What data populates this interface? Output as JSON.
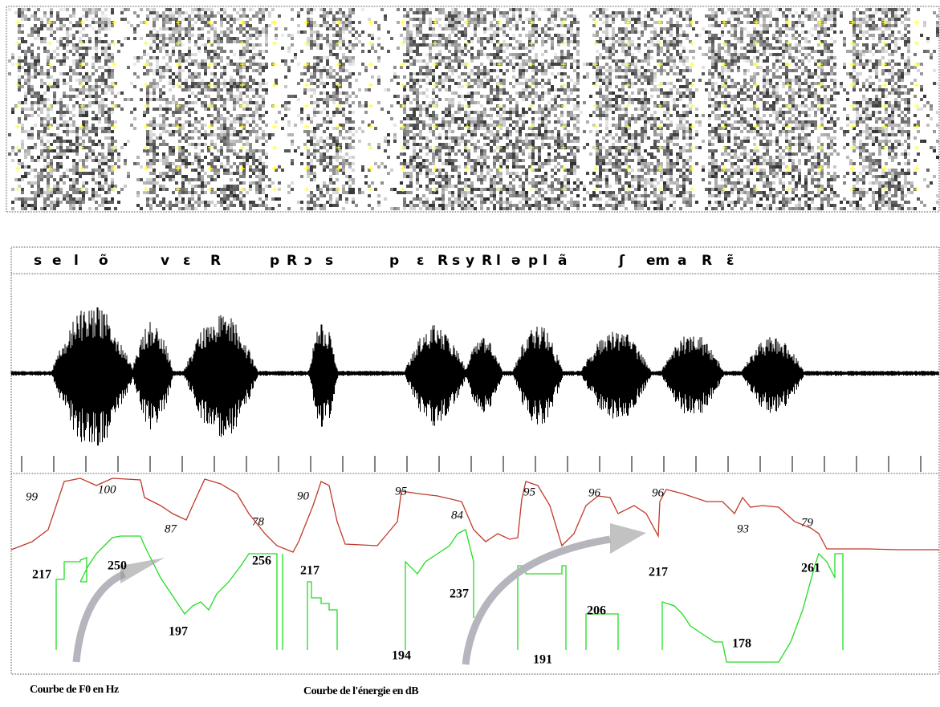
{
  "transcription": [
    "s",
    "e",
    "l",
    "õ",
    "v",
    "ɛ",
    "R",
    "p",
    "R",
    "ɔ",
    "s",
    "p",
    "ɛ",
    "R",
    "s",
    "y",
    "R",
    "l",
    "ə",
    "p",
    "l",
    "ã",
    "ʃ",
    "em",
    "a",
    "R",
    "ɛ̃"
  ],
  "energy_labels": [
    "99",
    "100",
    "87",
    "78",
    "90",
    "95",
    "84",
    "95",
    "96",
    "96",
    "93",
    "79"
  ],
  "f0_labels": [
    "217",
    "250",
    "256",
    "197",
    "217",
    "237",
    "194",
    "191",
    "206",
    "217",
    "178",
    "261"
  ],
  "captions": [
    "Courbe de F0 en Hz",
    "Courbe de l'énergie en dB"
  ]
}
